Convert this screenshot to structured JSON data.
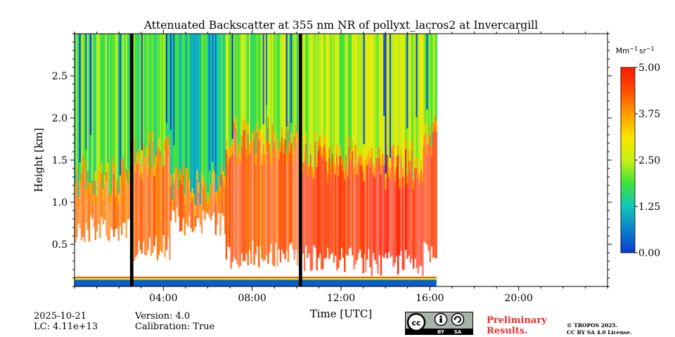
{
  "chart_data": {
    "type": "heatmap",
    "title": "Attenuated Backscatter at 355 nm NR of pollyxt_lacros2 at Invercargill",
    "xlabel": "Time [UTC]",
    "ylabel": "Height [km]",
    "xlim": [
      0,
      24
    ],
    "ylim": [
      0,
      3.0
    ],
    "x_ticks": [
      {
        "value": 4,
        "label": "04:00"
      },
      {
        "value": 8,
        "label": "08:00"
      },
      {
        "value": 12,
        "label": "12:00"
      },
      {
        "value": 16,
        "label": "16:00"
      },
      {
        "value": 20,
        "label": "20:00"
      }
    ],
    "y_ticks": [
      {
        "value": 0.5,
        "label": "0.5"
      },
      {
        "value": 1.0,
        "label": "1.0"
      },
      {
        "value": 1.5,
        "label": "1.5"
      },
      {
        "value": 2.0,
        "label": "2.0"
      },
      {
        "value": 2.5,
        "label": "2.5"
      }
    ],
    "colorbar": {
      "unit_base": "Mm",
      "unit_exp1": "−1",
      "unit_mid": "sr",
      "unit_exp2": "−1",
      "range": [
        0,
        5
      ],
      "ticks": [
        {
          "value": 0,
          "label": "0.00"
        },
        {
          "value": 1.25,
          "label": "1.25"
        },
        {
          "value": 2.5,
          "label": "2.50"
        },
        {
          "value": 3.75,
          "label": "3.75"
        },
        {
          "value": 5,
          "label": "5.00"
        }
      ],
      "colormap": [
        "#0a3bd1",
        "#0b82c8",
        "#11c6b9",
        "#3de23a",
        "#c7f016",
        "#ffe400",
        "#ff9b00",
        "#ff4d00",
        "#ff1a00"
      ]
    },
    "data_end_hour": 16.3,
    "gaps_hours": [
      [
        2.5,
        2.65
      ],
      [
        10.1,
        10.25
      ]
    ],
    "profiles": [
      {
        "start": 0.0,
        "end": 2.5,
        "cloud_base_km": 1.3,
        "aerosol_top_km": 0.5,
        "backscatter_high": 2.0,
        "backscatter_low": 4.1
      },
      {
        "start": 2.65,
        "end": 4.3,
        "cloud_base_km": 1.6,
        "aerosol_top_km": 0.3,
        "backscatter_high": 1.8,
        "backscatter_low": 4.2
      },
      {
        "start": 4.3,
        "end": 6.8,
        "cloud_base_km": 1.2,
        "aerosol_top_km": 0.6,
        "backscatter_high": 1.5,
        "backscatter_low": 4.2
      },
      {
        "start": 6.8,
        "end": 10.1,
        "cloud_base_km": 1.8,
        "aerosol_top_km": 0.2,
        "backscatter_high": 2.2,
        "backscatter_low": 4.3
      },
      {
        "start": 10.25,
        "end": 13.0,
        "cloud_base_km": 1.6,
        "aerosol_top_km": 0.15,
        "backscatter_high": 2.4,
        "backscatter_low": 4.6
      },
      {
        "start": 13.0,
        "end": 15.7,
        "cloud_base_km": 1.5,
        "aerosol_top_km": 0.1,
        "backscatter_high": 2.6,
        "backscatter_low": 4.8
      },
      {
        "start": 15.7,
        "end": 16.3,
        "cloud_base_km": 1.9,
        "aerosol_top_km": 0.2,
        "backscatter_high": 2.0,
        "backscatter_low": 4.5
      }
    ],
    "surface_layer_km": 0.08,
    "grid": false,
    "legend": "none"
  },
  "footer": {
    "date": "2025-10-21",
    "lc": "LC: 4.11e+13",
    "version": "Version: 4.0",
    "calibration": "Calibration: True",
    "preliminary_line1": "Preliminary",
    "preliminary_line2": "Results.",
    "copyright_line1": "© TROPOS 2025.",
    "copyright_line2": "CC BY SA 4.0 License.",
    "license_by": "BY",
    "license_sa": "SA"
  }
}
